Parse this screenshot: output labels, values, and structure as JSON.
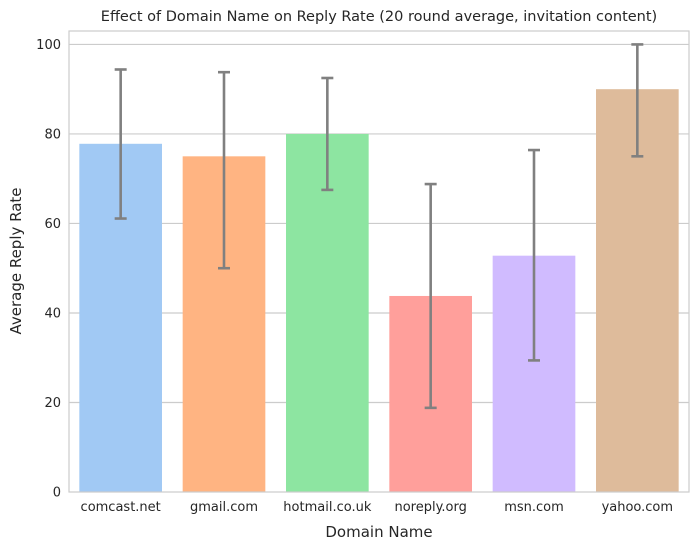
{
  "chart_data": {
    "type": "bar",
    "title": "Effect of Domain Name on Reply Rate (20 round average, invitation content)",
    "xlabel": "Domain Name",
    "ylabel": "Average Reply Rate",
    "categories": [
      "comcast.net",
      "gmail.com",
      "hotmail.co.uk",
      "noreply.org",
      "msn.com",
      "yahoo.com"
    ],
    "values": [
      77.8,
      75.0,
      80.0,
      43.8,
      52.8,
      90.0
    ],
    "error_low": [
      61.1,
      50.0,
      67.5,
      18.8,
      29.4,
      75.0
    ],
    "error_high": [
      94.4,
      93.8,
      92.5,
      68.8,
      76.4,
      100.0
    ],
    "colors": [
      "#a1c9f4",
      "#ffb482",
      "#8de5a1",
      "#ff9f9b",
      "#d0bbff",
      "#debb9b"
    ],
    "error_bar_color": "#808080",
    "ylim": [
      0,
      103
    ],
    "yticks": [
      0,
      20,
      40,
      60,
      80,
      100
    ],
    "grid": true
  }
}
